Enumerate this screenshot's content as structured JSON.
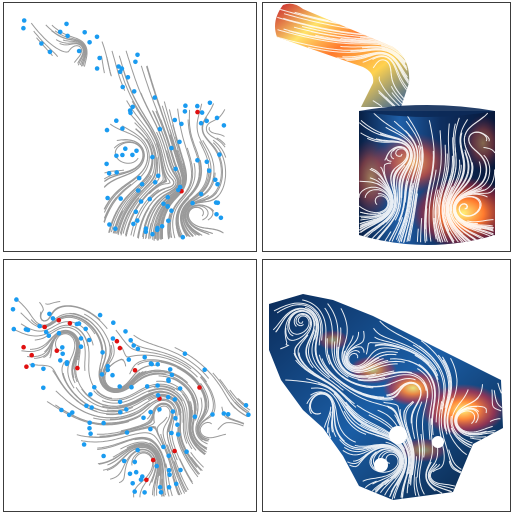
{
  "figure": {
    "panels": [
      {
        "id": "top-left",
        "kind": "streamline-critical-points",
        "model": "intake-port-cylinder"
      },
      {
        "id": "top-right",
        "kind": "surface-flow-rendering",
        "model": "intake-port-cylinder"
      },
      {
        "id": "bottom-left",
        "kind": "streamline-critical-points",
        "model": "complex-engine-block"
      },
      {
        "id": "bottom-right",
        "kind": "surface-flow-rendering",
        "model": "complex-engine-block"
      }
    ],
    "colors": {
      "streamline": "#9a9a9a",
      "critical_point_blue": "#1a9bf0",
      "critical_point_red": "#e01010",
      "surface_dark": "#0a2a55",
      "surface_mid": "#1f6fb8",
      "surface_hot": "#ff6a3a",
      "surface_peak": "#fff27a",
      "surface_lines": "#ffffff",
      "panel_border": "#3c3c3c"
    }
  }
}
